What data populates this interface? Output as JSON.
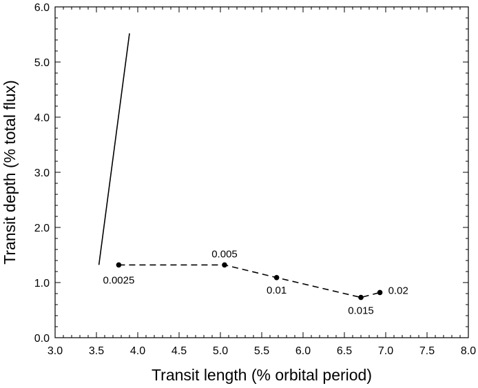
{
  "chart_data": {
    "type": "line",
    "xlabel": "Transit length (% orbital period)",
    "ylabel": "Transit depth (% total flux)",
    "xlim": [
      3.0,
      8.0
    ],
    "ylim": [
      0.0,
      6.0
    ],
    "x_ticks": [
      "3.0",
      "3.5",
      "4.0",
      "4.5",
      "5.0",
      "5.5",
      "6.0",
      "6.5",
      "7.0",
      "7.5",
      "8.0"
    ],
    "y_ticks": [
      "0.0",
      "1.0",
      "2.0",
      "3.0",
      "4.0",
      "5.0",
      "6.0"
    ],
    "grid": false,
    "series": [
      {
        "style": "solid",
        "markers": false,
        "points": [
          {
            "x": 3.53,
            "y": 1.32
          },
          {
            "x": 3.9,
            "y": 5.52
          }
        ]
      },
      {
        "style": "dashed",
        "markers": true,
        "points": [
          {
            "x": 3.77,
            "y": 1.32,
            "label": "0.0025"
          },
          {
            "x": 5.05,
            "y": 1.32,
            "label": "0.005"
          },
          {
            "x": 5.68,
            "y": 1.09,
            "label": "0.01"
          },
          {
            "x": 6.7,
            "y": 0.73,
            "label": "0.015"
          },
          {
            "x": 6.93,
            "y": 0.82,
            "label": "0.02"
          }
        ]
      }
    ]
  }
}
